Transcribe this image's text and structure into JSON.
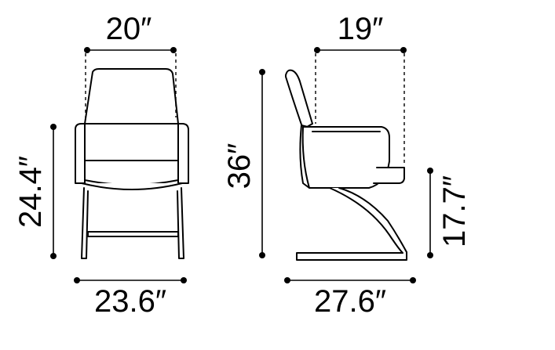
{
  "dimensions": {
    "front_width_top": "20″",
    "front_height": "24.4″",
    "front_width_bottom": "23.6″",
    "side_depth_top": "19″",
    "side_height": "36″",
    "side_seat_height": "17.7″",
    "side_depth_bottom": "27.6″"
  },
  "colors": {
    "line": "#000000",
    "background": "#ffffff"
  }
}
